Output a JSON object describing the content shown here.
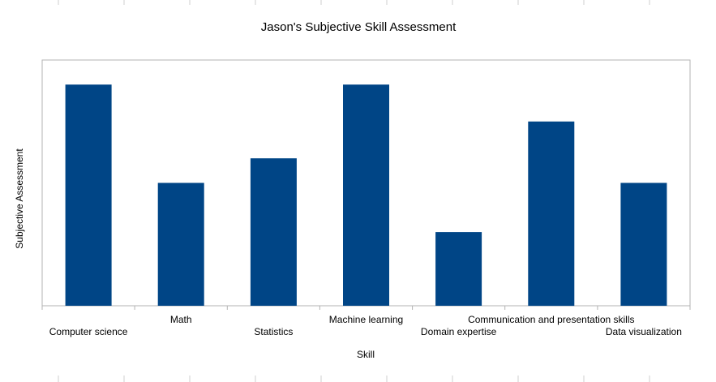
{
  "colors": {
    "bar": "#004586",
    "plot_border": "#b3b3b3",
    "axis": "#b3b3b3",
    "background": "#ffffff",
    "text": "#000000"
  },
  "chart_data": {
    "type": "bar",
    "title": "Jason's Subjective Skill Assessment",
    "xlabel": "Skill",
    "ylabel": "Subjective Assessment",
    "categories": [
      "Computer science",
      "Math",
      "Statistics",
      "Machine learning",
      "Domain expertise",
      "Communication and presentation skills",
      "Data visualization"
    ],
    "values": [
      9,
      5,
      6,
      9,
      3,
      7.5,
      5
    ],
    "ylim": [
      0,
      10
    ],
    "y_ticks_visible": false,
    "grid": false,
    "legend": "none"
  }
}
